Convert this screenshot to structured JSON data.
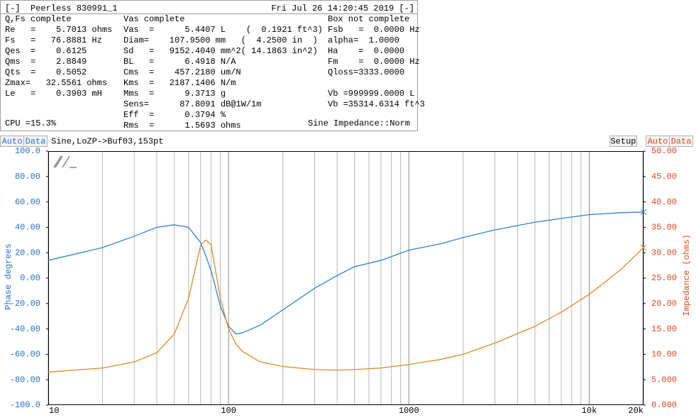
{
  "header": {
    "left": "[-]  Peerless 830991_1",
    "right": "Fri Jul 26 14:20:45 2019 [-]"
  },
  "panel": {
    "columns": [
      {
        "title": "Q,Fs complete",
        "rows": [
          "Re   =    5.7013 ohms",
          "Fs   =   76.8881 Hz",
          "Qes  =    0.6125",
          "Qms  =    2.8849",
          "Qts  =    0.5052",
          "Zmax=   32.5561 ohms",
          "Le   =    0.3903 mH"
        ]
      },
      {
        "title": "Vas complete",
        "rows": [
          "Vas  =      5.4407 L    (  0.1921 ft^3)",
          "Diam=    107.9500 mm   (  4.2500 in  )",
          "Sd   =   9152.4040 mm^2( 14.1863 in^2)",
          "BL   =      6.4918 N/A",
          "Cms  =    457.2180 um/N",
          "Kms  =   2187.1406 N/m",
          "Mms  =      9.3713 g",
          "Sens=      87.8091 dB@1W/1m",
          "Eff  =      0.3794 %",
          "Rms  =      1.5693 ohms"
        ]
      },
      {
        "title": "Box not complete",
        "rows": [
          "Fsb   =  0.0000 Hz",
          "alpha=  1.0000",
          "Ha    =  0.0000",
          "Fm    =  0.0000 Hz",
          "Qloss=3333.0000"
        ]
      }
    ],
    "volume_rows": [
      "Vb =999999.0000 L",
      "Vb =35314.6314 ft^3"
    ],
    "cpu": "CPU =15.3%",
    "status": "Sine Impedance::Norm"
  },
  "toolbar": {
    "left_auto": "Auto",
    "left_data": "Data",
    "trace": "Sine,LoZP->Buf03,153pt",
    "setup": "Setup",
    "right_auto": "Auto",
    "right_data": "Data"
  },
  "chart_data": {
    "type": "line",
    "y_label": "Phase degrees",
    "y2_label": "Impedance (ohms)",
    "log_x": true,
    "grid": true,
    "y_label_color": "#1f6fd0",
    "y2_label_color": "#e0461c",
    "xlim": [
      10,
      20000
    ],
    "xticks": [
      10,
      100,
      1000,
      {
        "value": 10000,
        "label": "10k"
      },
      {
        "value": 20000,
        "label": "20k"
      }
    ],
    "xminor": [
      20,
      30,
      40,
      50,
      60,
      70,
      80,
      90,
      200,
      300,
      400,
      500,
      600,
      700,
      800,
      900,
      2000,
      3000,
      4000,
      5000,
      6000,
      7000,
      8000,
      9000
    ],
    "ylim": [
      -100,
      100
    ],
    "yticks": [
      {
        "value": -100,
        "label": "-100.0"
      },
      {
        "value": -80,
        "label": "-80.00"
      },
      {
        "value": -60,
        "label": "-60.00"
      },
      {
        "value": -40,
        "label": "-40.00"
      },
      {
        "value": -20,
        "label": "-20.00"
      },
      {
        "value": 0,
        "label": "0.00"
      },
      {
        "value": 20,
        "label": "20.00"
      },
      {
        "value": 40,
        "label": "40.00"
      },
      {
        "value": 60,
        "label": "60.00"
      },
      {
        "value": 80,
        "label": "80.00"
      },
      {
        "value": 100,
        "label": "100.0"
      }
    ],
    "y2lim": [
      0,
      50
    ],
    "y2ticks": [
      {
        "value": 0,
        "label": "0.000"
      },
      {
        "value": 5,
        "label": "5.000"
      },
      {
        "value": 10,
        "label": "10.00"
      },
      {
        "value": 15,
        "label": "15.00"
      },
      {
        "value": 20,
        "label": "20.00"
      },
      {
        "value": 25,
        "label": "25.00"
      },
      {
        "value": 30,
        "label": "30.00"
      },
      {
        "value": 35,
        "label": "35.00"
      },
      {
        "value": 40,
        "label": "40.00"
      },
      {
        "value": 45,
        "label": "45.00"
      },
      {
        "value": 50,
        "label": "50.00"
      }
    ],
    "x": [
      10,
      20,
      30,
      40,
      50,
      60,
      70,
      75,
      80,
      90,
      100,
      110,
      120,
      150,
      200,
      300,
      400,
      500,
      700,
      1000,
      1500,
      2000,
      3000,
      5000,
      7000,
      10000,
      15000,
      20000
    ],
    "series": [
      {
        "color": "#2a84d2",
        "values": [
          14,
          24,
          33,
          40,
          42,
          40,
          28,
          17,
          6,
          -22,
          -38,
          -44,
          -43,
          -37,
          -25,
          -8,
          2,
          9,
          14,
          22,
          27,
          32,
          38,
          44,
          47,
          50,
          51.5,
          52
        ]
      },
      {
        "color": "#e38a24",
        "axis": "y2",
        "values": [
          6.5,
          7.3,
          8.5,
          10.3,
          14,
          21,
          31.5,
          32.5,
          31.5,
          21,
          15,
          12,
          10.5,
          8.5,
          7.6,
          7,
          6.9,
          7,
          7.3,
          8,
          9,
          10,
          12.2,
          15.5,
          18.3,
          21.8,
          26.7,
          31
        ]
      }
    ]
  }
}
